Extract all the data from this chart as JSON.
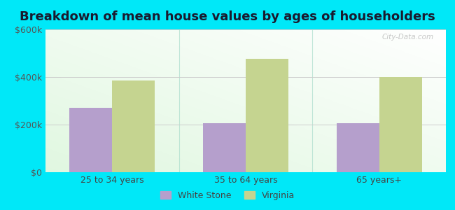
{
  "title": "Breakdown of mean house values by ages of householders",
  "categories": [
    "25 to 34 years",
    "35 to 64 years",
    "65 years+"
  ],
  "white_stone_values": [
    270000,
    205000,
    205000
  ],
  "virginia_values": [
    385000,
    475000,
    400000
  ],
  "ylim": [
    0,
    600000
  ],
  "yticks": [
    0,
    200000,
    400000,
    600000
  ],
  "ytick_labels": [
    "$0",
    "$200k",
    "$400k",
    "$600k"
  ],
  "bar_color_ws": "#b59fcc",
  "bar_color_va": "#c5d490",
  "background_outer": "#00e8f8",
  "legend_ws": "White Stone",
  "legend_va": "Virginia",
  "title_fontsize": 13,
  "tick_fontsize": 9,
  "legend_fontsize": 9,
  "bar_width": 0.32,
  "watermark": "City-Data.com"
}
